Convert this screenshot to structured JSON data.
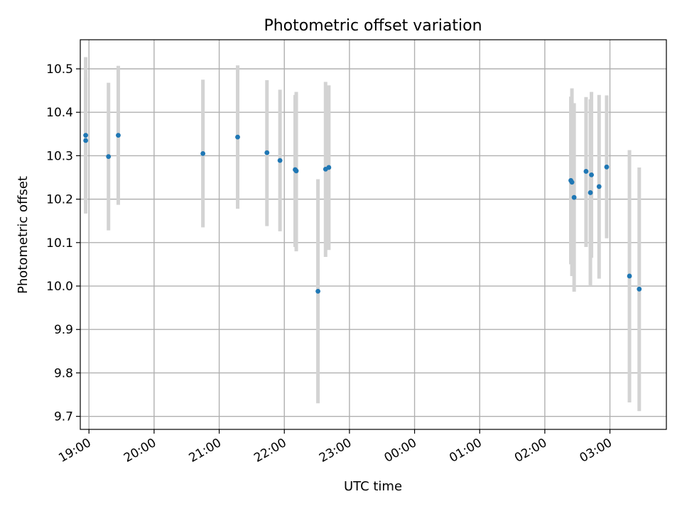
{
  "chart_data": {
    "type": "scatter",
    "title": "Photometric offset variation",
    "xlabel": "UTC time",
    "ylabel": "Photometric offset",
    "xlim": [
      "18:52",
      "03:52"
    ],
    "ylim": [
      9.67,
      10.567
    ],
    "x_ticks": [
      "19:00",
      "20:00",
      "21:00",
      "22:00",
      "23:00",
      "00:00",
      "01:00",
      "02:00",
      "03:00"
    ],
    "y_ticks": [
      "9.7",
      "9.8",
      "9.9",
      "10.0",
      "10.1",
      "10.2",
      "10.3",
      "10.4",
      "10.5"
    ],
    "grid": true,
    "colors": {
      "point": "#1f77b4",
      "errorbar": "#d3d3d3",
      "grid": "#b0b0b0"
    },
    "points": [
      {
        "time": "18:57",
        "y": 10.347,
        "err_low": 10.167,
        "err_high": 10.527
      },
      {
        "time": "18:57",
        "y": 10.335,
        "err_low": 10.19,
        "err_high": 10.48
      },
      {
        "time": "19:18",
        "y": 10.298,
        "err_low": 10.128,
        "err_high": 10.468
      },
      {
        "time": "19:27",
        "y": 10.347,
        "err_low": 10.187,
        "err_high": 10.507
      },
      {
        "time": "20:45",
        "y": 10.305,
        "err_low": 10.135,
        "err_high": 10.475
      },
      {
        "time": "21:17",
        "y": 10.343,
        "err_low": 10.178,
        "err_high": 10.508
      },
      {
        "time": "21:44",
        "y": 10.307,
        "err_low": 10.138,
        "err_high": 10.474
      },
      {
        "time": "21:56",
        "y": 10.289,
        "err_low": 10.126,
        "err_high": 10.452
      },
      {
        "time": "22:10",
        "y": 10.268,
        "err_low": 10.09,
        "err_high": 10.44
      },
      {
        "time": "22:11",
        "y": 10.265,
        "err_low": 10.08,
        "err_high": 10.447
      },
      {
        "time": "22:31",
        "y": 9.988,
        "err_low": 9.73,
        "err_high": 10.246
      },
      {
        "time": "22:38",
        "y": 10.269,
        "err_low": 10.067,
        "err_high": 10.47
      },
      {
        "time": "22:41",
        "y": 10.273,
        "err_low": 10.083,
        "err_high": 10.462
      },
      {
        "time": "02:24",
        "y": 10.243,
        "err_low": 10.05,
        "err_high": 10.436
      },
      {
        "time": "02:25",
        "y": 10.239,
        "err_low": 10.023,
        "err_high": 10.455
      },
      {
        "time": "02:27",
        "y": 10.204,
        "err_low": 9.987,
        "err_high": 10.421
      },
      {
        "time": "02:38",
        "y": 10.264,
        "err_low": 10.09,
        "err_high": 10.435
      },
      {
        "time": "02:42",
        "y": 10.215,
        "err_low": 10.0,
        "err_high": 10.43
      },
      {
        "time": "02:43",
        "y": 10.256,
        "err_low": 10.065,
        "err_high": 10.447
      },
      {
        "time": "02:50",
        "y": 10.229,
        "err_low": 10.017,
        "err_high": 10.44
      },
      {
        "time": "02:57",
        "y": 10.274,
        "err_low": 10.11,
        "err_high": 10.439
      },
      {
        "time": "03:18",
        "y": 10.023,
        "err_low": 9.732,
        "err_high": 10.313
      },
      {
        "time": "03:27",
        "y": 9.993,
        "err_low": 9.712,
        "err_high": 10.273
      }
    ]
  }
}
